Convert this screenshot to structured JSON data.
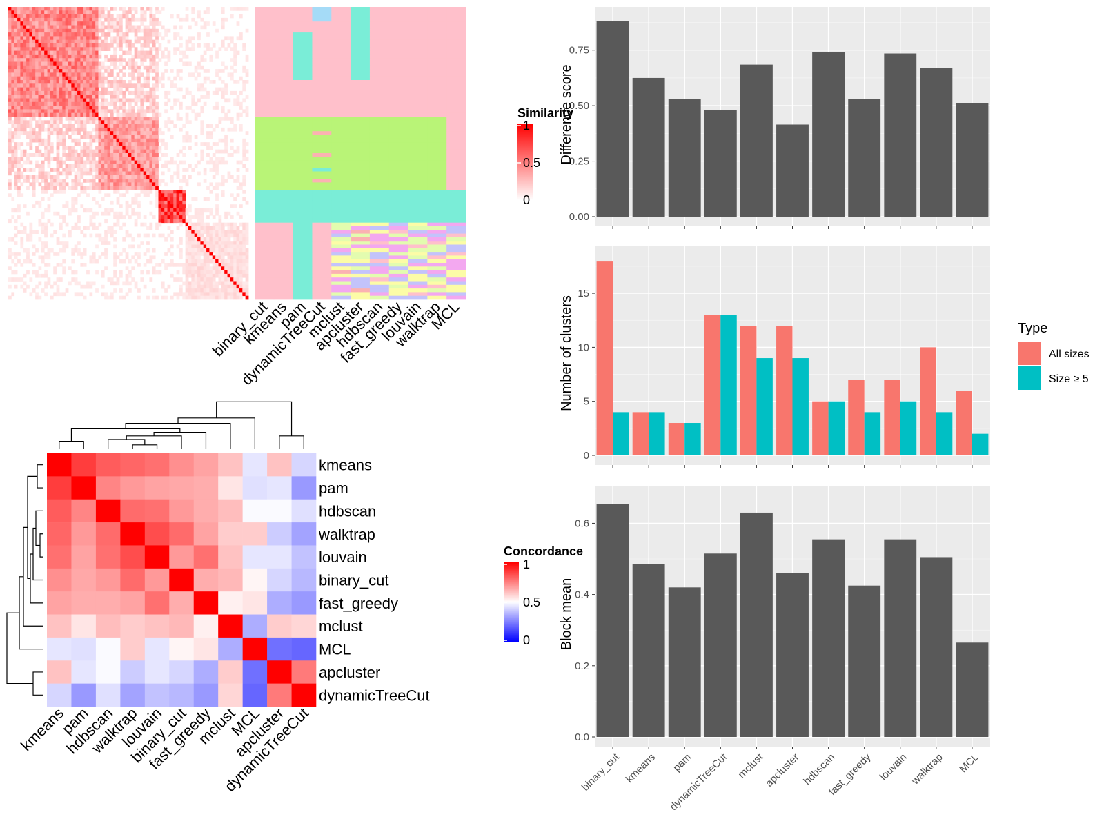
{
  "colors": {
    "panel_bg": "#ebebeb",
    "grid_major": "#ffffff",
    "bar_dark": "#595959",
    "all_sizes": "#f8766d",
    "size_ge_5": "#00bfc4",
    "heat_high": "#ff0000",
    "heat_mid_concordance": "#ffffff",
    "heat_low_concordance": "#0000ff",
    "cluster_palette": [
      "#ffc0cb",
      "#b9f477",
      "#7aedd7",
      "#a5dbf7",
      "#f3a8f0",
      "#fcfca7",
      "#e3fcaf",
      "#fbb2b2",
      "#c3c3fb",
      "#f8a07d"
    ]
  },
  "similarity_heatmap": {
    "legend_title": "Similarity",
    "legend_ticks": [
      "1",
      "0.5",
      "0"
    ],
    "method_labels": [
      "binary_cut",
      "kmeans",
      "pam",
      "dynamicTreeCut",
      "mclust",
      "apcluster",
      "hdbscan",
      "fast_greedy",
      "louvain",
      "walktrap",
      "MCL"
    ],
    "block_sizes": [
      30,
      20,
      9,
      21
    ]
  },
  "concordance_heatmap": {
    "legend_title": "Concordance",
    "legend_ticks": [
      "1",
      "0.5",
      "0"
    ],
    "row_labels": [
      "kmeans",
      "pam",
      "hdbscan",
      "walktrap",
      "louvain",
      "binary_cut",
      "fast_greedy",
      "mclust",
      "MCL",
      "apcluster",
      "dynamicTreeCut"
    ],
    "col_labels": [
      "kmeans",
      "pam",
      "hdbscan",
      "walktrap",
      "louvain",
      "binary_cut",
      "fast_greedy",
      "mclust",
      "MCL",
      "apcluster",
      "dynamicTreeCut"
    ],
    "matrix": [
      [
        1.0,
        0.88,
        0.82,
        0.8,
        0.78,
        0.72,
        0.68,
        0.62,
        0.45,
        0.62,
        0.42
      ],
      [
        0.88,
        1.0,
        0.74,
        0.7,
        0.68,
        0.67,
        0.66,
        0.55,
        0.44,
        0.45,
        0.3
      ],
      [
        0.82,
        0.74,
        1.0,
        0.79,
        0.78,
        0.7,
        0.66,
        0.63,
        0.49,
        0.49,
        0.44
      ],
      [
        0.8,
        0.7,
        0.79,
        1.0,
        0.85,
        0.79,
        0.68,
        0.6,
        0.6,
        0.4,
        0.32
      ],
      [
        0.78,
        0.68,
        0.78,
        0.85,
        1.0,
        0.7,
        0.78,
        0.62,
        0.45,
        0.45,
        0.38
      ],
      [
        0.72,
        0.67,
        0.7,
        0.79,
        0.7,
        1.0,
        0.66,
        0.64,
        0.52,
        0.42,
        0.36
      ],
      [
        0.68,
        0.66,
        0.66,
        0.68,
        0.78,
        0.66,
        1.0,
        0.53,
        0.55,
        0.34,
        0.3
      ],
      [
        0.62,
        0.55,
        0.63,
        0.6,
        0.62,
        0.64,
        0.53,
        1.0,
        0.34,
        0.6,
        0.58
      ],
      [
        0.45,
        0.44,
        0.49,
        0.6,
        0.45,
        0.52,
        0.55,
        0.34,
        1.0,
        0.22,
        0.2
      ],
      [
        0.62,
        0.45,
        0.49,
        0.4,
        0.45,
        0.42,
        0.34,
        0.6,
        0.22,
        1.0,
        0.76
      ],
      [
        0.42,
        0.3,
        0.44,
        0.32,
        0.38,
        0.36,
        0.3,
        0.58,
        0.2,
        0.76,
        1.0
      ]
    ]
  },
  "chart_data": [
    {
      "type": "bar",
      "title": "",
      "xlabel": "",
      "ylabel": "Difference score",
      "categories": [
        "binary_cut",
        "kmeans",
        "pam",
        "dynamicTreeCut",
        "mclust",
        "apcluster",
        "hdbscan",
        "fast_greedy",
        "louvain",
        "walktrap",
        "MCL"
      ],
      "values": [
        0.88,
        0.625,
        0.53,
        0.48,
        0.685,
        0.415,
        0.74,
        0.53,
        0.735,
        0.67,
        0.51
      ],
      "ylim": [
        0,
        0.92
      ],
      "yticks": [
        "0.00",
        "0.25",
        "0.50",
        "0.75"
      ],
      "grid": true
    },
    {
      "type": "bar",
      "title": "",
      "xlabel": "",
      "ylabel": "Number of clusters",
      "categories": [
        "binary_cut",
        "kmeans",
        "pam",
        "dynamicTreeCut",
        "mclust",
        "apcluster",
        "hdbscan",
        "fast_greedy",
        "louvain",
        "walktrap",
        "MCL"
      ],
      "series": [
        {
          "name": "All sizes",
          "values": [
            18,
            4,
            3,
            13,
            12,
            12,
            5,
            7,
            7,
            10,
            6
          ]
        },
        {
          "name": "Size ≥ 5",
          "values": [
            4,
            4,
            3,
            13,
            9,
            9,
            5,
            4,
            5,
            4,
            2
          ]
        }
      ],
      "ylim": [
        0,
        18.9
      ],
      "yticks": [
        "0",
        "5",
        "10",
        "15"
      ],
      "legend_title": "Type",
      "legend_position": "right",
      "grid": true
    },
    {
      "type": "bar",
      "title": "",
      "xlabel": "",
      "ylabel": "Block mean",
      "categories": [
        "binary_cut",
        "kmeans",
        "pam",
        "dynamicTreeCut",
        "mclust",
        "apcluster",
        "hdbscan",
        "fast_greedy",
        "louvain",
        "walktrap",
        "MCL"
      ],
      "values": [
        0.655,
        0.485,
        0.42,
        0.515,
        0.63,
        0.46,
        0.555,
        0.425,
        0.555,
        0.505,
        0.265
      ],
      "ylim": [
        0,
        0.69
      ],
      "yticks": [
        "0.0",
        "0.2",
        "0.4",
        "0.6"
      ],
      "grid": true
    }
  ]
}
